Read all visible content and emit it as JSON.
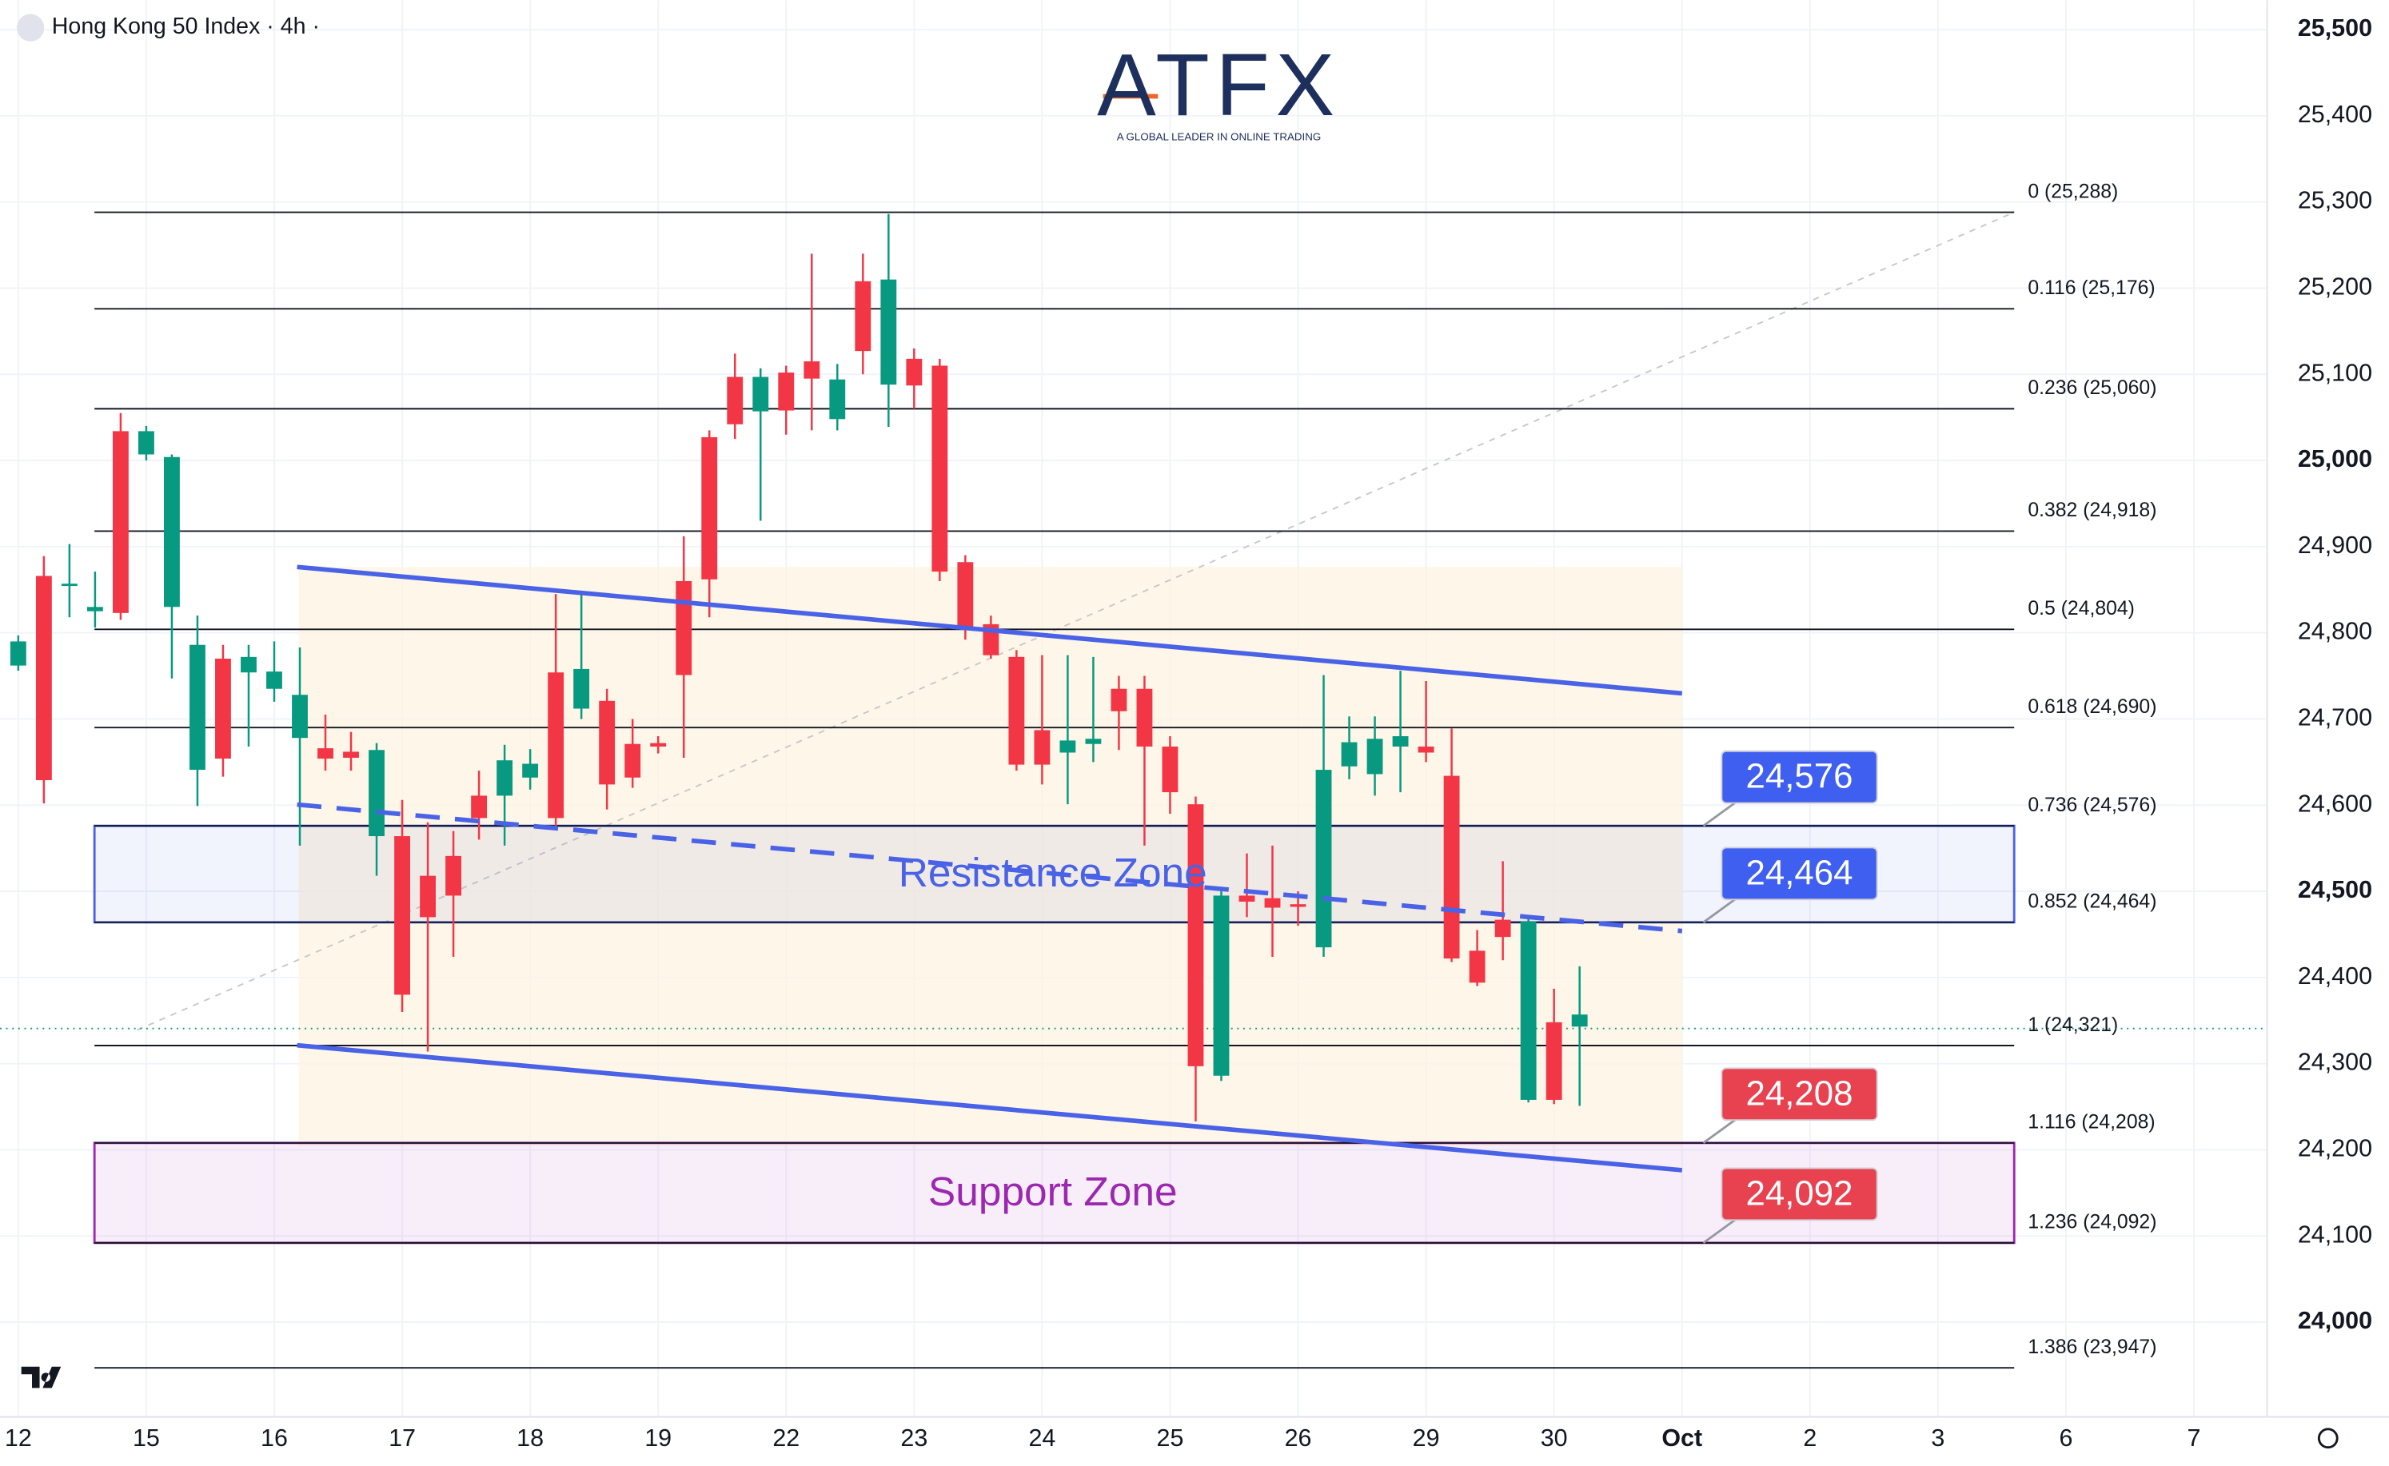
{
  "chart_data": {
    "type": "candlestick",
    "title": "Hong Kong 50 Index · 4h ·",
    "logo": "ATFX",
    "logo_tagline": "A GLOBAL LEADER IN ONLINE TRADING",
    "up_color": "#089981",
    "down_color": "#f23645",
    "xlim": [
      -0.714,
      87.86
    ],
    "xticks": [
      {
        "value": 0,
        "label": "12"
      },
      {
        "value": 5,
        "label": "15"
      },
      {
        "value": 10,
        "label": "16"
      },
      {
        "value": 15,
        "label": "17"
      },
      {
        "value": 20,
        "label": "18"
      },
      {
        "value": 25,
        "label": "19"
      },
      {
        "value": 30,
        "label": "22"
      },
      {
        "value": 35,
        "label": "23"
      },
      {
        "value": 40,
        "label": "24"
      },
      {
        "value": 45,
        "label": "25"
      },
      {
        "value": 50,
        "label": "26"
      },
      {
        "value": 55,
        "label": "29"
      },
      {
        "value": 60,
        "label": "30"
      },
      {
        "value": 65,
        "label": "Oct"
      },
      {
        "value": 70,
        "label": "2"
      },
      {
        "value": 75,
        "label": "3"
      },
      {
        "value": 80,
        "label": "6"
      },
      {
        "value": 85,
        "label": "7"
      }
    ],
    "ylim": [
      23890,
      25534
    ],
    "yticks": [
      {
        "value": 24000,
        "label": "24,000"
      },
      {
        "value": 24100,
        "label": "24,100"
      },
      {
        "value": 24200,
        "label": "24,200"
      },
      {
        "value": 24300,
        "label": "24,300"
      },
      {
        "value": 24400,
        "label": "24,400"
      },
      {
        "value": 24500,
        "label": "24,500"
      },
      {
        "value": 24600,
        "label": "24,600"
      },
      {
        "value": 24700,
        "label": "24,700"
      },
      {
        "value": 24800,
        "label": "24,800"
      },
      {
        "value": 24900,
        "label": "24,900"
      },
      {
        "value": 25000,
        "label": "25,000"
      },
      {
        "value": 25100,
        "label": "25,100"
      },
      {
        "value": 25200,
        "label": "25,200"
      },
      {
        "value": 25300,
        "label": "25,300"
      },
      {
        "value": 25400,
        "label": "25,400"
      },
      {
        "value": 25500,
        "label": "25,500"
      }
    ],
    "fib_levels": [
      {
        "label": "0 (25,288)",
        "value": 25288
      },
      {
        "label": "0.116 (25,176)",
        "value": 25176
      },
      {
        "label": "0.236 (25,060)",
        "value": 25060
      },
      {
        "label": "0.382 (24,918)",
        "value": 24918
      },
      {
        "label": "0.5 (24,804)",
        "value": 24804
      },
      {
        "label": "0.618 (24,690)",
        "value": 24690
      },
      {
        "label": "0.736 (24,576)",
        "value": 24576
      },
      {
        "label": "0.852 (24,464)",
        "value": 24464
      },
      {
        "label": "1 (24,321)",
        "value": 24321
      },
      {
        "label": "1.116 (24,208)",
        "value": 24208
      },
      {
        "label": "1.236 (24,092)",
        "value": 24092
      },
      {
        "label": "1.386 (23,947)",
        "value": 23947
      }
    ],
    "zones": [
      {
        "label": "Resistance Zone",
        "low": 24464,
        "high": 24576,
        "color": "#4a63e6"
      },
      {
        "label": "Support Zone",
        "low": 24092,
        "high": 24208,
        "color": "#9c27b0"
      }
    ],
    "price_tags": [
      {
        "value": 24576,
        "label": "24,576",
        "color": "#3f5ff0"
      },
      {
        "value": 24464,
        "label": "24,464",
        "color": "#3f5ff0"
      },
      {
        "value": 24208,
        "label": "24,208",
        "color": "#e8414f"
      },
      {
        "value": 24092,
        "label": "24,092",
        "color": "#e8414f"
      }
    ],
    "candles": [
      {
        "x": 0,
        "open": 24762,
        "high": 24797,
        "low": 24756,
        "close": 24790
      },
      {
        "x": 1,
        "open": 24866,
        "high": 24889,
        "low": 24602,
        "close": 24629
      },
      {
        "x": 2,
        "open": 24855,
        "high": 24903,
        "low": 24818,
        "close": 24857
      },
      {
        "x": 3,
        "open": 24825,
        "high": 24871,
        "low": 24806,
        "close": 24830
      },
      {
        "x": 4,
        "open": 25034,
        "high": 25055,
        "low": 24815,
        "close": 24823
      },
      {
        "x": 5,
        "open": 25007,
        "high": 25040,
        "low": 25000,
        "close": 25034
      },
      {
        "x": 6,
        "open": 24830,
        "high": 25007,
        "low": 24747,
        "close": 25004
      },
      {
        "x": 7,
        "open": 24641,
        "high": 24820,
        "low": 24599,
        "close": 24786
      },
      {
        "x": 8,
        "open": 24770,
        "high": 24786,
        "low": 24633,
        "close": 24654
      },
      {
        "x": 9,
        "open": 24754,
        "high": 24786,
        "low": 24668,
        "close": 24772
      },
      {
        "x": 10,
        "open": 24735,
        "high": 24790,
        "low": 24720,
        "close": 24755
      },
      {
        "x": 11,
        "open": 24678,
        "high": 24783,
        "low": 24553,
        "close": 24728
      },
      {
        "x": 12,
        "open": 24666,
        "high": 24705,
        "low": 24640,
        "close": 24654
      },
      {
        "x": 13,
        "open": 24662,
        "high": 24685,
        "low": 24640,
        "close": 24655
      },
      {
        "x": 14,
        "open": 24564,
        "high": 24672,
        "low": 24518,
        "close": 24664
      },
      {
        "x": 15,
        "open": 24564,
        "high": 24606,
        "low": 24360,
        "close": 24380
      },
      {
        "x": 16,
        "open": 24518,
        "high": 24580,
        "low": 24314,
        "close": 24470
      },
      {
        "x": 17,
        "open": 24541,
        "high": 24570,
        "low": 24424,
        "close": 24495
      },
      {
        "x": 18,
        "open": 24611,
        "high": 24640,
        "low": 24560,
        "close": 24585
      },
      {
        "x": 19,
        "open": 24611,
        "high": 24670,
        "low": 24553,
        "close": 24652
      },
      {
        "x": 20,
        "open": 24632,
        "high": 24665,
        "low": 24618,
        "close": 24648
      },
      {
        "x": 21,
        "open": 24754,
        "high": 24845,
        "low": 24575,
        "close": 24585
      },
      {
        "x": 22,
        "open": 24712,
        "high": 24845,
        "low": 24700,
        "close": 24758
      },
      {
        "x": 23,
        "open": 24721,
        "high": 24735,
        "low": 24595,
        "close": 24624
      },
      {
        "x": 24,
        "open": 24671,
        "high": 24700,
        "low": 24620,
        "close": 24632
      },
      {
        "x": 25,
        "open": 24672,
        "high": 24680,
        "low": 24660,
        "close": 24668
      },
      {
        "x": 26,
        "open": 24860,
        "high": 24912,
        "low": 24655,
        "close": 24751
      },
      {
        "x": 27,
        "open": 25027,
        "high": 25035,
        "low": 24818,
        "close": 24862
      },
      {
        "x": 28,
        "open": 25097,
        "high": 25124,
        "low": 25025,
        "close": 25042
      },
      {
        "x": 29,
        "open": 25057,
        "high": 25107,
        "low": 24930,
        "close": 25097
      },
      {
        "x": 30,
        "open": 25102,
        "high": 25110,
        "low": 25030,
        "close": 25058
      },
      {
        "x": 31,
        "open": 25115,
        "high": 25240,
        "low": 25035,
        "close": 25095
      },
      {
        "x": 32,
        "open": 25048,
        "high": 25112,
        "low": 25035,
        "close": 25094
      },
      {
        "x": 33,
        "open": 25208,
        "high": 25240,
        "low": 25100,
        "close": 25127
      },
      {
        "x": 34,
        "open": 25088,
        "high": 25286,
        "low": 25039,
        "close": 25210
      },
      {
        "x": 35,
        "open": 25118,
        "high": 25130,
        "low": 25060,
        "close": 25087
      },
      {
        "x": 36,
        "open": 25110,
        "high": 25118,
        "low": 24860,
        "close": 24871
      },
      {
        "x": 37,
        "open": 24882,
        "high": 24890,
        "low": 24792,
        "close": 24806
      },
      {
        "x": 38,
        "open": 24810,
        "high": 24820,
        "low": 24770,
        "close": 24774
      },
      {
        "x": 39,
        "open": 24772,
        "high": 24780,
        "low": 24640,
        "close": 24647
      },
      {
        "x": 40,
        "open": 24687,
        "high": 24774,
        "low": 24624,
        "close": 24647
      },
      {
        "x": 41,
        "open": 24661,
        "high": 24774,
        "low": 24601,
        "close": 24675
      },
      {
        "x": 42,
        "open": 24671,
        "high": 24772,
        "low": 24650,
        "close": 24677
      },
      {
        "x": 43,
        "open": 24735,
        "high": 24750,
        "low": 24664,
        "close": 24709
      },
      {
        "x": 44,
        "open": 24735,
        "high": 24750,
        "low": 24553,
        "close": 24668
      },
      {
        "x": 45,
        "open": 24668,
        "high": 24680,
        "low": 24590,
        "close": 24615
      },
      {
        "x": 46,
        "open": 24601,
        "high": 24610,
        "low": 24233,
        "close": 24297
      },
      {
        "x": 47,
        "open": 24286,
        "high": 24500,
        "low": 24280,
        "close": 24495
      },
      {
        "x": 48,
        "open": 24495,
        "high": 24544,
        "low": 24470,
        "close": 24488
      },
      {
        "x": 49,
        "open": 24492,
        "high": 24553,
        "low": 24424,
        "close": 24481
      },
      {
        "x": 50,
        "open": 24485,
        "high": 24500,
        "low": 24460,
        "close": 24482
      },
      {
        "x": 51,
        "open": 24435,
        "high": 24751,
        "low": 24424,
        "close": 24641
      },
      {
        "x": 52,
        "open": 24645,
        "high": 24703,
        "low": 24630,
        "close": 24673
      },
      {
        "x": 53,
        "open": 24636,
        "high": 24703,
        "low": 24611,
        "close": 24677
      },
      {
        "x": 54,
        "open": 24668,
        "high": 24756,
        "low": 24615,
        "close": 24680
      },
      {
        "x": 55,
        "open": 24668,
        "high": 24744,
        "low": 24650,
        "close": 24661
      },
      {
        "x": 56,
        "open": 24634,
        "high": 24689,
        "low": 24418,
        "close": 24422
      },
      {
        "x": 57,
        "open": 24431,
        "high": 24455,
        "low": 24390,
        "close": 24394
      },
      {
        "x": 58,
        "open": 24467,
        "high": 24535,
        "low": 24420,
        "close": 24447
      },
      {
        "x": 59,
        "open": 24258,
        "high": 24470,
        "low": 24255,
        "close": 24465
      },
      {
        "x": 60,
        "open": 24348,
        "high": 24387,
        "low": 24253,
        "close": 24258
      },
      {
        "x": 61,
        "open": 24343,
        "high": 24413,
        "low": 24251,
        "close": 24357
      }
    ]
  }
}
